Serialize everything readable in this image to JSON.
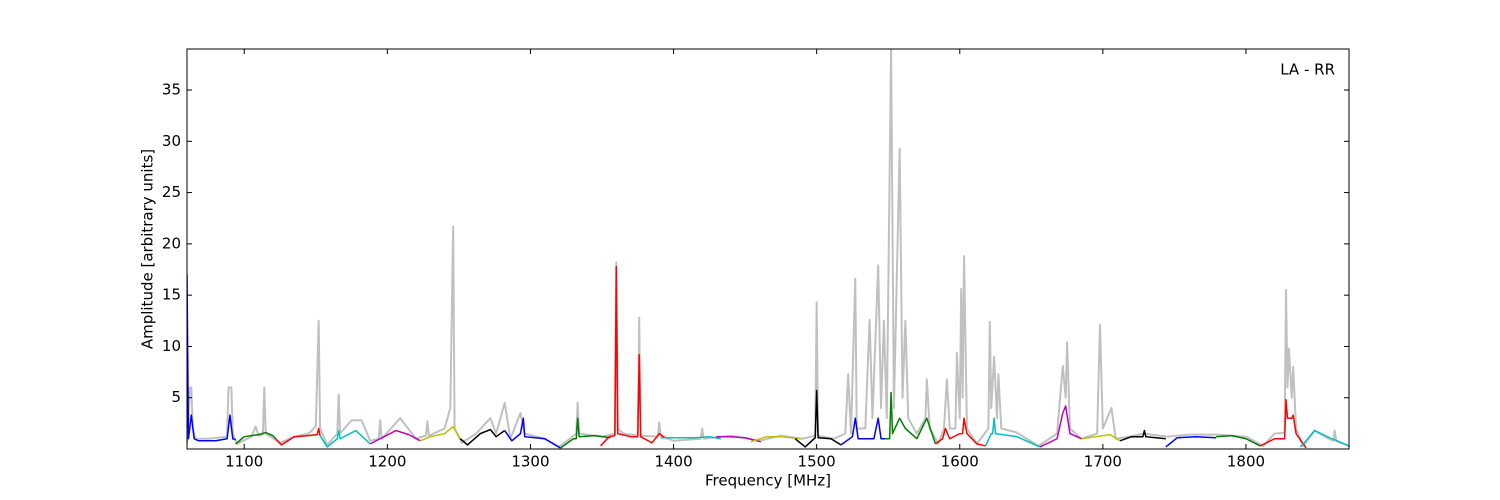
{
  "chart_data": {
    "type": "line",
    "xlabel": "Frequency [MHz]",
    "ylabel": "Amplitude [arbitrary units]",
    "annotation": "LA - RR",
    "xlim": [
      1060,
      1872
    ],
    "ylim": [
      0,
      39
    ],
    "xticks": [
      1100,
      1200,
      1300,
      1400,
      1500,
      1600,
      1700,
      1800
    ],
    "yticks": [
      5,
      10,
      15,
      20,
      25,
      30,
      35
    ],
    "series": [
      {
        "color": "#c0c0c0",
        "x": [
          1060,
          1061,
          1062,
          1063,
          1064,
          1066,
          1075,
          1088,
          1089,
          1091,
          1092,
          1095,
          1105,
          1108,
          1110,
          1113,
          1114,
          1115,
          1125,
          1135,
          1145,
          1150,
          1152,
          1153,
          1158,
          1165,
          1166,
          1167,
          1175,
          1182,
          1188,
          1194,
          1195,
          1196,
          1209,
          1220,
          1227,
          1228,
          1229,
          1240,
          1244,
          1246,
          1247,
          1252,
          1262,
          1272,
          1276,
          1282,
          1286,
          1293,
          1296,
          1310,
          1320,
          1332,
          1333,
          1334,
          1350,
          1359,
          1360,
          1361,
          1365,
          1375,
          1376,
          1377,
          1389,
          1390,
          1391,
          1400,
          1419,
          1420,
          1421,
          1440,
          1460,
          1475,
          1490,
          1499,
          1500,
          1501,
          1512,
          1520,
          1522,
          1524,
          1527,
          1528,
          1534,
          1537,
          1539,
          1543,
          1545,
          1547,
          1549,
          1552,
          1554,
          1558,
          1560,
          1562,
          1564,
          1570,
          1576,
          1577,
          1579,
          1585,
          1589,
          1591,
          1593,
          1597,
          1598,
          1600,
          1601,
          1602,
          1603,
          1605,
          1612,
          1620,
          1621,
          1622,
          1624,
          1626,
          1627,
          1629,
          1640,
          1655,
          1668,
          1672,
          1674,
          1675,
          1677,
          1685,
          1696,
          1698,
          1700,
          1706,
          1709,
          1718,
          1729,
          1745,
          1760,
          1780,
          1800,
          1812,
          1820,
          1827,
          1828,
          1829,
          1830,
          1832,
          1833,
          1835,
          1840,
          1848,
          1855,
          1861,
          1862,
          1863,
          1872
        ],
        "values": [
          0.5,
          3,
          6,
          6,
          2,
          1,
          1,
          1.2,
          6,
          6,
          1.5,
          0.5,
          1.2,
          2.2,
          1.3,
          1.4,
          6,
          1.5,
          0.6,
          1.2,
          1.5,
          2.2,
          12.5,
          2,
          0.4,
          1.5,
          5.3,
          1.5,
          2.8,
          2.8,
          0.8,
          1,
          2.8,
          1,
          3,
          1,
          1.3,
          2.7,
          1.3,
          2,
          4,
          21.7,
          2,
          0.6,
          1.5,
          3,
          1.5,
          4.5,
          1,
          3.5,
          1.5,
          1,
          0.2,
          1.5,
          4.5,
          1.5,
          1.2,
          1.5,
          18.2,
          2,
          1.5,
          1.3,
          12.8,
          1.3,
          1.2,
          2.6,
          1.3,
          0.8,
          1,
          2,
          1,
          1.3,
          0.8,
          1.3,
          1,
          1.3,
          14.3,
          1.3,
          1,
          1.5,
          7.3,
          1.5,
          16.6,
          2,
          2,
          12.6,
          3,
          17.9,
          4,
          12.5,
          3,
          39,
          4,
          29.3,
          5,
          12.5,
          3,
          1.5,
          3,
          6.8,
          2,
          0.5,
          2,
          6.8,
          2,
          2,
          9.4,
          3,
          15.6,
          5,
          18.8,
          2,
          0.5,
          2,
          12.4,
          4,
          9,
          3,
          7.3,
          2,
          1.6,
          0.3,
          1.5,
          8.1,
          5,
          10.4,
          2,
          1,
          1.5,
          12.1,
          2,
          4,
          1,
          1.2,
          1.5,
          1.2,
          1.4,
          1.4,
          1.2,
          0.3,
          1.5,
          1.6,
          15.5,
          6,
          9.8,
          5,
          8,
          2,
          0.3,
          1.8,
          1.2,
          0.8,
          1.8,
          0.8,
          0.3
        ]
      },
      {
        "color": "#0000ff",
        "x": [
          1060,
          1061,
          1063,
          1065,
          1068,
          1080,
          1088,
          1090,
          1092,
          1094
        ],
        "values": [
          17,
          1,
          3.3,
          1,
          0.8,
          0.8,
          1,
          3.3,
          1,
          0.9
        ]
      },
      {
        "color": "#008000",
        "x": [
          1094,
          1100,
          1110,
          1115,
          1120,
          1122
        ],
        "values": [
          0.5,
          1.2,
          1.4,
          1.6,
          1.3,
          1
        ]
      },
      {
        "color": "#ff0000",
        "x": [
          1122,
          1126,
          1135,
          1145,
          1151,
          1152,
          1153
        ],
        "values": [
          1,
          0.4,
          1.2,
          1.3,
          1.4,
          2,
          1.3
        ]
      },
      {
        "color": "#00bfbf",
        "x": [
          1153,
          1158,
          1165,
          1166,
          1167,
          1178,
          1188
        ],
        "values": [
          1.3,
          0.2,
          1,
          1.8,
          1,
          1.8,
          0.5
        ]
      },
      {
        "color": "#bf00bf",
        "x": [
          1188,
          1195,
          1206,
          1215,
          1223
        ],
        "values": [
          0.5,
          1,
          1.8,
          1.4,
          0.8
        ]
      },
      {
        "color": "#bfbf00",
        "x": [
          1223,
          1230,
          1240,
          1246,
          1251
        ],
        "values": [
          0.8,
          1.2,
          1.5,
          2.2,
          1
        ]
      },
      {
        "color": "#000000",
        "x": [
          1251,
          1256,
          1265,
          1272,
          1276,
          1282
        ],
        "values": [
          1,
          0.4,
          1.5,
          1.9,
          1.2,
          1.8
        ]
      },
      {
        "color": "#0000ff",
        "x": [
          1282,
          1287,
          1293,
          1295,
          1296,
          1310,
          1321
        ],
        "values": [
          1.8,
          0.8,
          1.5,
          3,
          1.2,
          1,
          0.1
        ]
      },
      {
        "color": "#008000",
        "x": [
          1321,
          1330,
          1332,
          1333,
          1334,
          1345,
          1356
        ],
        "values": [
          0.1,
          1,
          1,
          3,
          1.2,
          1.3,
          1.1
        ]
      },
      {
        "color": "#ff0000",
        "x": [
          1349,
          1355,
          1359,
          1360,
          1361,
          1370,
          1375,
          1376,
          1377,
          1385,
          1390,
          1394
        ],
        "values": [
          0.3,
          1.2,
          1.3,
          17.8,
          1.5,
          1.2,
          1.2,
          9.2,
          1.2,
          0.6,
          1.5,
          1.1
        ]
      },
      {
        "color": "#00bfbf",
        "x": [
          1391,
          1400,
          1415,
          1425,
          1433
        ],
        "values": [
          1.1,
          1.1,
          1.1,
          1.2,
          1
        ]
      },
      {
        "color": "#bf00bf",
        "x": [
          1430,
          1440,
          1450,
          1461
        ],
        "values": [
          1.2,
          1.2,
          1.1,
          0.7
        ]
      },
      {
        "color": "#bfbf00",
        "x": [
          1454,
          1465,
          1475,
          1489
        ],
        "values": [
          0.7,
          1.2,
          1.2,
          1
        ]
      },
      {
        "color": "#000000",
        "x": [
          1485,
          1492,
          1499,
          1500,
          1501,
          1510,
          1517
        ],
        "values": [
          1,
          0.2,
          1.1,
          5.7,
          1.1,
          1,
          0.4
        ]
      },
      {
        "color": "#0000ff",
        "x": [
          1517,
          1525,
          1527,
          1529,
          1535,
          1540,
          1543,
          1545,
          1548
        ],
        "values": [
          0.4,
          1.2,
          3,
          1,
          1,
          1,
          3,
          1,
          1
        ]
      },
      {
        "color": "#008000",
        "x": [
          1548,
          1551,
          1552,
          1553,
          1558,
          1562,
          1570,
          1577,
          1583
        ],
        "values": [
          1,
          1,
          5.5,
          1.5,
          3,
          2,
          1,
          3,
          0.5
        ]
      },
      {
        "color": "#ff0000",
        "x": [
          1583,
          1588,
          1590,
          1593,
          1600,
          1602,
          1603,
          1605,
          1612,
          1618
        ],
        "values": [
          0.5,
          1,
          2,
          1,
          1.5,
          1.5,
          3,
          1.5,
          0.5,
          0.3
        ]
      },
      {
        "color": "#00bfbf",
        "x": [
          1618,
          1622,
          1623,
          1624,
          1625,
          1640,
          1656
        ],
        "values": [
          0.3,
          1.5,
          1.5,
          3,
          1.5,
          1.2,
          0.2
        ]
      },
      {
        "color": "#bf00bf",
        "x": [
          1656,
          1668,
          1672,
          1674,
          1677,
          1685
        ],
        "values": [
          0.2,
          1,
          3.5,
          4.2,
          1.5,
          1
        ]
      },
      {
        "color": "#bfbf00",
        "x": [
          1685,
          1695,
          1705,
          1712
        ],
        "values": [
          1,
          1.2,
          1.4,
          0.8
        ]
      },
      {
        "color": "#000000",
        "x": [
          1712,
          1720,
          1728,
          1729,
          1730,
          1744
        ],
        "values": [
          0.8,
          1.2,
          1.2,
          1.8,
          1.2,
          1
        ]
      },
      {
        "color": "#0000ff",
        "x": [
          1744,
          1752,
          1765,
          1779
        ],
        "values": [
          0.2,
          1.1,
          1.2,
          1.1
        ]
      },
      {
        "color": "#008000",
        "x": [
          1779,
          1790,
          1800,
          1810
        ],
        "values": [
          1.2,
          1.3,
          1,
          0.3
        ]
      },
      {
        "color": "#ff0000",
        "x": [
          1810,
          1820,
          1827,
          1828,
          1829,
          1832,
          1833,
          1835,
          1842
        ],
        "values": [
          0.3,
          1,
          1,
          4.8,
          3,
          3,
          3.3,
          1.5,
          0.1
        ]
      },
      {
        "color": "#00bfbf",
        "x": [
          1838,
          1842,
          1848,
          1860,
          1872
        ],
        "values": [
          0.2,
          0.8,
          1.8,
          1,
          0.3
        ]
      }
    ]
  }
}
